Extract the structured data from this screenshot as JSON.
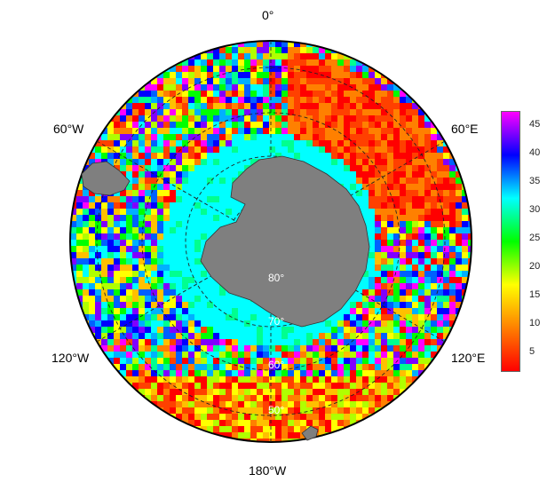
{
  "map": {
    "projection": "south-polar-stereographic",
    "lon_labels": {
      "top": "0°",
      "upper_left": "60°W",
      "upper_right": "60°E",
      "lower_left": "120°W",
      "lower_right": "120°E",
      "bottom": "180°W"
    },
    "lat_labels": [
      "80°",
      "70°",
      "60°",
      "50°"
    ],
    "land_color": "#7f7f7f",
    "grid_style": "dashed"
  },
  "colorbar": {
    "ticks": [
      "45",
      "40",
      "35",
      "30",
      "25",
      "20",
      "15",
      "10",
      "5"
    ],
    "range": [
      0,
      47
    ],
    "colors": [
      "#ff0000",
      "#ff8000",
      "#ffff00",
      "#00ff00",
      "#00ffff",
      "#0000ff",
      "#ff00ff"
    ]
  }
}
